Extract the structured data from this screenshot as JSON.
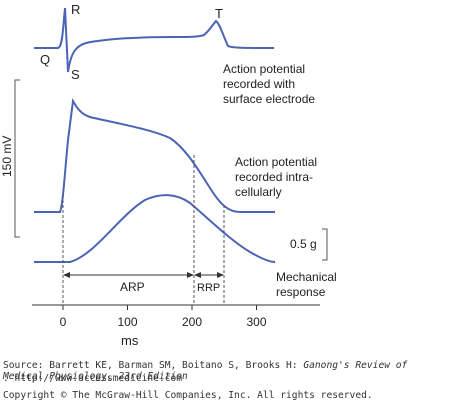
{
  "labels": {
    "R": "R",
    "Q": "Q",
    "S": "S",
    "T": "T",
    "surface": [
      "Action potential",
      "recorded with",
      "surface electrode"
    ],
    "intra": [
      "Action potential",
      "recorded intra-",
      "cellularly"
    ],
    "mechanical": [
      "Mechanical",
      "response"
    ],
    "voltage_scale": "150 mV",
    "force_scale": "0.5 g",
    "arp": "ARP",
    "rrp": "RRP",
    "x_unit": "ms"
  },
  "axis": {
    "x_ticks": [
      "0",
      "100",
      "200",
      "300"
    ],
    "x_tick_values": [
      0,
      100,
      200,
      300
    ]
  },
  "colors": {
    "trace": "#4a64b8",
    "ink": "#222222"
  },
  "caption": {
    "source_prefix": "Source: Barrett KE, Barman SM, Boitano S, Brooks H: ",
    "source_title": "Ganong's Review of Medical Physiology, 23rd Edition",
    "source_suffix": ": http://www.accessmedicine.com",
    "copyright": "Copyright © The McGraw-Hill Companies, Inc. All rights reserved."
  }
}
